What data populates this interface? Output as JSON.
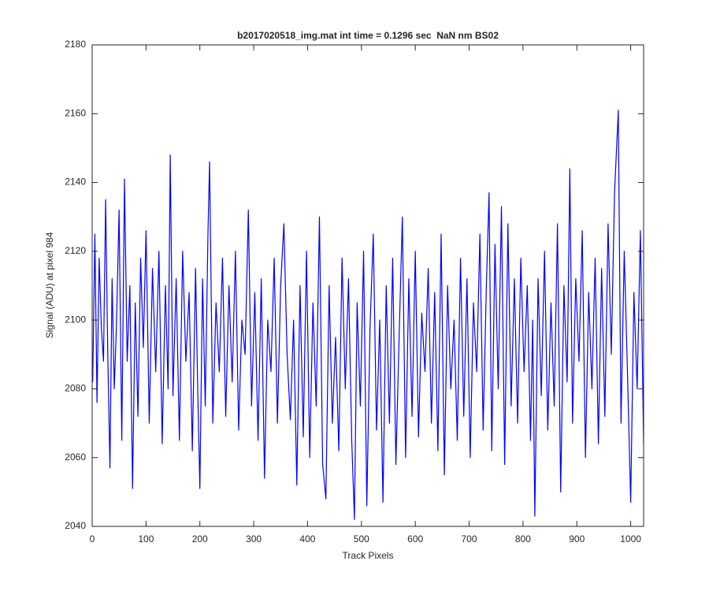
{
  "chart_data": {
    "type": "line",
    "title": "b2017020518_img.mat int time = 0.1296 sec  NaN nm BS02",
    "xlabel": "Track Pixels",
    "ylabel": "Signal (ADU) at pixel 984",
    "color": "#0000ff",
    "x": [
      1,
      5,
      9,
      13,
      17,
      21,
      25,
      29,
      33,
      37,
      41,
      45,
      50,
      55,
      60,
      65,
      70,
      75,
      80,
      85,
      90,
      95,
      100,
      106,
      112,
      118,
      124,
      130,
      136,
      141,
      145,
      150,
      156,
      162,
      168,
      174,
      180,
      186,
      192,
      196,
      200,
      205,
      210,
      215,
      218,
      224,
      230,
      236,
      242,
      248,
      254,
      260,
      266,
      272,
      278,
      284,
      290,
      296,
      302,
      308,
      314,
      320,
      326,
      332,
      338,
      344,
      350,
      356,
      362,
      368,
      374,
      380,
      386,
      392,
      398,
      404,
      410,
      416,
      422,
      428,
      434,
      440,
      446,
      452,
      458,
      464,
      470,
      476,
      482,
      487,
      492,
      498,
      504,
      510,
      516,
      522,
      528,
      534,
      540,
      546,
      552,
      558,
      564,
      570,
      576,
      582,
      588,
      594,
      600,
      606,
      612,
      618,
      624,
      630,
      636,
      642,
      648,
      654,
      660,
      666,
      672,
      678,
      684,
      690,
      696,
      702,
      708,
      714,
      720,
      726,
      732,
      737,
      742,
      748,
      754,
      760,
      766,
      772,
      778,
      784,
      790,
      796,
      802,
      808,
      814,
      818,
      822,
      828,
      834,
      840,
      846,
      852,
      858,
      864,
      870,
      876,
      882,
      887,
      892,
      898,
      904,
      910,
      916,
      922,
      928,
      934,
      940,
      946,
      952,
      958,
      964,
      970,
      977,
      982,
      988,
      994,
      1000,
      1006,
      1012,
      1018,
      1024
    ],
    "values": [
      2082,
      2125,
      2076,
      2118,
      2098,
      2088,
      2135,
      2090,
      2057,
      2112,
      2080,
      2098,
      2132,
      2065,
      2141,
      2088,
      2110,
      2051,
      2105,
      2072,
      2118,
      2092,
      2126,
      2070,
      2115,
      2085,
      2120,
      2064,
      2110,
      2080,
      2148,
      2078,
      2112,
      2065,
      2120,
      2088,
      2108,
      2062,
      2115,
      2080,
      2051,
      2112,
      2075,
      2125,
      2146,
      2070,
      2105,
      2085,
      2118,
      2072,
      2110,
      2082,
      2120,
      2068,
      2100,
      2090,
      2132,
      2075,
      2108,
      2065,
      2112,
      2054,
      2100,
      2085,
      2118,
      2070,
      2110,
      2128,
      2090,
      2071,
      2100,
      2052,
      2110,
      2066,
      2120,
      2060,
      2105,
      2075,
      2130,
      2058,
      2048,
      2110,
      2070,
      2095,
      2062,
      2118,
      2080,
      2112,
      2065,
      2042,
      2105,
      2075,
      2120,
      2046,
      2098,
      2125,
      2068,
      2100,
      2047,
      2110,
      2070,
      2118,
      2058,
      2095,
      2130,
      2060,
      2112,
      2072,
      2120,
      2066,
      2102,
      2085,
      2115,
      2070,
      2108,
      2062,
      2125,
      2055,
      2110,
      2080,
      2100,
      2065,
      2118,
      2072,
      2112,
      2060,
      2105,
      2085,
      2125,
      2068,
      2110,
      2137,
      2062,
      2122,
      2080,
      2133,
      2058,
      2128,
      2075,
      2112,
      2070,
      2118,
      2085,
      2110,
      2065,
      2100,
      2043,
      2112,
      2078,
      2120,
      2068,
      2105,
      2075,
      2128,
      2050,
      2110,
      2082,
      2144,
      2070,
      2112,
      2088,
      2126,
      2060,
      2108,
      2080,
      2118,
      2064,
      2115,
      2072,
      2128,
      2090,
      2137,
      2161,
      2070,
      2120,
      2085,
      2047,
      2108,
      2080,
      2126,
      2064
    ],
    "xlim": [
      0,
      1024
    ],
    "xticks": [
      0,
      100,
      200,
      300,
      400,
      500,
      600,
      700,
      800,
      900,
      1000
    ],
    "ylim": [
      2040,
      2180
    ],
    "yticks": [
      2040,
      2060,
      2080,
      2100,
      2120,
      2140,
      2160,
      2180
    ]
  }
}
